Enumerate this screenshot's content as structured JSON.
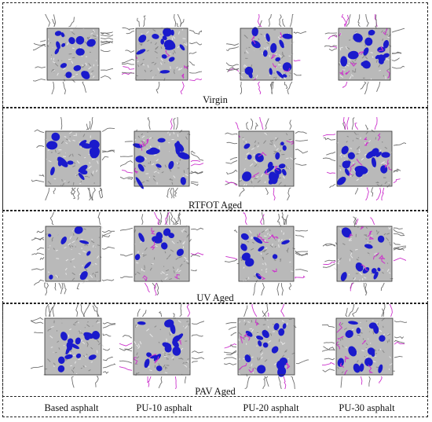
{
  "rows": [
    {
      "label": "Virgin"
    },
    {
      "label": "RTFOT Aged"
    },
    {
      "label": "UV Aged"
    },
    {
      "label": "PAV Aged"
    }
  ],
  "columns": [
    {
      "label": "Based asphalt"
    },
    {
      "label": "PU-10 asphalt"
    },
    {
      "label": "PU-20 asphalt"
    },
    {
      "label": "PU-30 asphalt"
    }
  ],
  "colors": {
    "void": "#1a1acc",
    "molecule": "#b9b9b9",
    "molecule_dark": "#6f6f6f",
    "polyurethane": "#cc33cc",
    "border": "#222222"
  }
}
